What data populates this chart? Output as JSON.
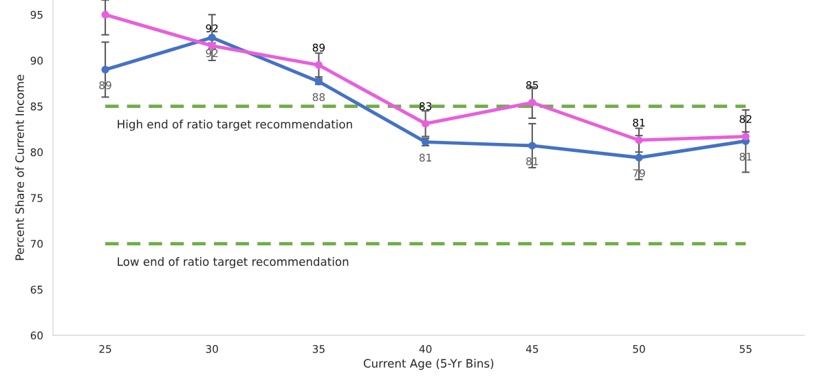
{
  "chart_data": {
    "type": "line",
    "xlabel": "Current Age (5-Yr Bins)",
    "ylabel": "Percent Share of Current Income",
    "categories": [
      "25",
      "30",
      "35",
      "40",
      "45",
      "50",
      "55"
    ],
    "series": [
      {
        "color": "#4472c4",
        "values": [
          89.0,
          92.5,
          87.7,
          81.1,
          80.7,
          79.4,
          81.2
        ],
        "errors": [
          3,
          2.5,
          0.3,
          0.4,
          2.4,
          2.4,
          3.4
        ],
        "value_labels": [
          "89",
          "92",
          "88",
          "81",
          "81",
          "79",
          "81"
        ]
      },
      {
        "color": "#e85fdc",
        "values": [
          95.0,
          91.6,
          89.5,
          83.1,
          85.4,
          81.3,
          81.7
        ],
        "errors": [
          [
            92.8,
            96.6
          ],
          0.3,
          1.3,
          1.4,
          1.7,
          1.3,
          0.5
        ],
        "value_labels": [
          null,
          "92",
          "89",
          "83",
          "85",
          "81",
          "82"
        ]
      }
    ],
    "ylim": [
      60,
      96.6
    ],
    "yticks": [
      60,
      65,
      70,
      75,
      80,
      85,
      90,
      95
    ],
    "ref_lines": [
      {
        "axis": "y",
        "value": 85,
        "label": "High end of ratio target recommendation",
        "color": "#70ad47",
        "line_style": "dashed"
      },
      {
        "axis": "y",
        "value": 70,
        "label": "Low end of ratio target recommendation",
        "color": "#70ad47",
        "line_style": "dashed"
      }
    ],
    "marker": "circle",
    "grid": false,
    "legend": false
  }
}
